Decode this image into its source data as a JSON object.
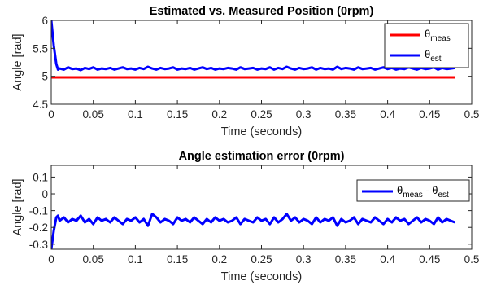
{
  "chart_data": [
    {
      "type": "line",
      "title": "Estimated vs. Measured Position (0rpm)",
      "xlabel": "Time (seconds)",
      "ylabel": "Angle [rad]",
      "xlim": [
        0,
        0.5
      ],
      "ylim": [
        4.5,
        6
      ],
      "xticks": [
        "0",
        "0.05",
        "0.1",
        "0.15",
        "0.2",
        "0.25",
        "0.3",
        "0.35",
        "0.4",
        "0.45",
        "0.5"
      ],
      "yticks": [
        "4.5",
        "5",
        "5.5",
        "6"
      ],
      "grid": false,
      "legend_position": "top-right",
      "series": [
        {
          "name": "θmeas",
          "name_main": "θ",
          "name_sub": "meas",
          "color": "#ff0000",
          "x": [
            0,
            0.48
          ],
          "y": [
            4.98,
            4.98
          ]
        },
        {
          "name": "θest",
          "name_main": "θ",
          "name_sub": "est",
          "color": "#0000ff",
          "x": [
            0,
            0.003,
            0.006,
            0.008,
            0.01,
            0.015,
            0.02,
            0.025,
            0.03,
            0.035,
            0.04,
            0.045,
            0.05,
            0.055,
            0.06,
            0.065,
            0.07,
            0.075,
            0.08,
            0.085,
            0.09,
            0.095,
            0.1,
            0.105,
            0.11,
            0.115,
            0.12,
            0.125,
            0.13,
            0.135,
            0.14,
            0.145,
            0.15,
            0.155,
            0.16,
            0.165,
            0.17,
            0.175,
            0.18,
            0.185,
            0.19,
            0.195,
            0.2,
            0.205,
            0.21,
            0.215,
            0.22,
            0.225,
            0.23,
            0.235,
            0.24,
            0.245,
            0.25,
            0.255,
            0.26,
            0.265,
            0.27,
            0.275,
            0.28,
            0.285,
            0.29,
            0.295,
            0.3,
            0.305,
            0.31,
            0.315,
            0.32,
            0.325,
            0.33,
            0.335,
            0.34,
            0.345,
            0.35,
            0.355,
            0.36,
            0.365,
            0.37,
            0.375,
            0.38,
            0.385,
            0.39,
            0.395,
            0.4,
            0.405,
            0.41,
            0.415,
            0.42,
            0.425,
            0.43,
            0.435,
            0.44,
            0.445,
            0.45,
            0.455,
            0.46,
            0.465,
            0.47,
            0.475,
            0.48
          ],
          "y": [
            6.0,
            5.55,
            5.22,
            5.12,
            5.14,
            5.12,
            5.16,
            5.13,
            5.14,
            5.11,
            5.15,
            5.13,
            5.16,
            5.12,
            5.14,
            5.13,
            5.15,
            5.12,
            5.14,
            5.16,
            5.13,
            5.14,
            5.12,
            5.15,
            5.13,
            5.17,
            5.14,
            5.12,
            5.15,
            5.13,
            5.14,
            5.16,
            5.12,
            5.14,
            5.13,
            5.15,
            5.12,
            5.14,
            5.16,
            5.13,
            5.15,
            5.12,
            5.14,
            5.13,
            5.15,
            5.14,
            5.12,
            5.16,
            5.13,
            5.14,
            5.15,
            5.12,
            5.14,
            5.13,
            5.16,
            5.12,
            5.15,
            5.13,
            5.17,
            5.14,
            5.12,
            5.15,
            5.13,
            5.14,
            5.16,
            5.12,
            5.15,
            5.13,
            5.14,
            5.12,
            5.17,
            5.13,
            5.15,
            5.14,
            5.12,
            5.16,
            5.13,
            5.14,
            5.15,
            5.12,
            5.14,
            5.16,
            5.13,
            5.15,
            5.12,
            5.14,
            5.13,
            5.16,
            5.14,
            5.12,
            5.15,
            5.13,
            5.14,
            5.16,
            5.12,
            5.15,
            5.13,
            5.14,
            5.15
          ]
        }
      ]
    },
    {
      "type": "line",
      "title": "Angle estimation error (0rpm)",
      "xlabel": "Time (seconds)",
      "ylabel": "Angle [rad]",
      "xlim": [
        0,
        0.5
      ],
      "ylim": [
        -0.33,
        0.17
      ],
      "xticks": [
        "0",
        "0.05",
        "0.1",
        "0.15",
        "0.2",
        "0.25",
        "0.3",
        "0.35",
        "0.4",
        "0.45",
        "0.5"
      ],
      "yticks": [
        "-0.3",
        "-0.2",
        "-0.1",
        "0",
        "0.1"
      ],
      "grid": false,
      "legend_position": "top-right",
      "series": [
        {
          "name": "θmeas - θest",
          "name_main1": "θ",
          "name_sub1": "meas",
          "name_mid": " - θ",
          "name_sub2": "est",
          "color": "#0000ff",
          "x": [
            0,
            0.003,
            0.006,
            0.008,
            0.01,
            0.015,
            0.02,
            0.025,
            0.03,
            0.035,
            0.04,
            0.045,
            0.05,
            0.055,
            0.06,
            0.065,
            0.07,
            0.075,
            0.08,
            0.085,
            0.09,
            0.095,
            0.1,
            0.105,
            0.11,
            0.115,
            0.12,
            0.125,
            0.13,
            0.135,
            0.14,
            0.145,
            0.15,
            0.155,
            0.16,
            0.165,
            0.17,
            0.175,
            0.18,
            0.185,
            0.19,
            0.195,
            0.2,
            0.205,
            0.21,
            0.215,
            0.22,
            0.225,
            0.23,
            0.235,
            0.24,
            0.245,
            0.25,
            0.255,
            0.26,
            0.265,
            0.27,
            0.275,
            0.28,
            0.285,
            0.29,
            0.295,
            0.3,
            0.305,
            0.31,
            0.315,
            0.32,
            0.325,
            0.33,
            0.335,
            0.34,
            0.345,
            0.35,
            0.355,
            0.36,
            0.365,
            0.37,
            0.375,
            0.38,
            0.385,
            0.39,
            0.395,
            0.4,
            0.405,
            0.41,
            0.415,
            0.42,
            0.425,
            0.43,
            0.435,
            0.44,
            0.445,
            0.45,
            0.455,
            0.46,
            0.465,
            0.47,
            0.475,
            0.48
          ],
          "y": [
            -0.33,
            -0.22,
            -0.14,
            -0.13,
            -0.16,
            -0.14,
            -0.17,
            -0.15,
            -0.16,
            -0.13,
            -0.17,
            -0.15,
            -0.18,
            -0.14,
            -0.16,
            -0.15,
            -0.17,
            -0.14,
            -0.16,
            -0.18,
            -0.15,
            -0.16,
            -0.14,
            -0.17,
            -0.15,
            -0.19,
            -0.12,
            -0.14,
            -0.17,
            -0.15,
            -0.16,
            -0.18,
            -0.14,
            -0.16,
            -0.15,
            -0.17,
            -0.14,
            -0.16,
            -0.18,
            -0.15,
            -0.17,
            -0.14,
            -0.16,
            -0.15,
            -0.17,
            -0.16,
            -0.14,
            -0.18,
            -0.15,
            -0.16,
            -0.17,
            -0.14,
            -0.16,
            -0.15,
            -0.18,
            -0.14,
            -0.17,
            -0.15,
            -0.12,
            -0.16,
            -0.14,
            -0.17,
            -0.15,
            -0.16,
            -0.18,
            -0.14,
            -0.17,
            -0.15,
            -0.16,
            -0.14,
            -0.19,
            -0.15,
            -0.17,
            -0.16,
            -0.14,
            -0.18,
            -0.15,
            -0.16,
            -0.17,
            -0.14,
            -0.16,
            -0.18,
            -0.15,
            -0.17,
            -0.14,
            -0.16,
            -0.15,
            -0.18,
            -0.16,
            -0.14,
            -0.17,
            -0.15,
            -0.16,
            -0.18,
            -0.14,
            -0.17,
            -0.15,
            -0.16,
            -0.17
          ]
        }
      ]
    }
  ]
}
